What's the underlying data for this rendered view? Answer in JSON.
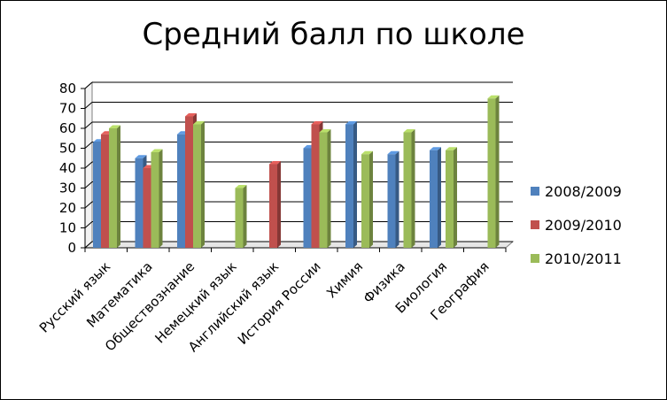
{
  "chart_data": {
    "type": "bar",
    "title": "Средний балл по школе",
    "xlabel": "",
    "ylabel": "",
    "ylim": [
      0,
      80
    ],
    "yticks": [
      0,
      10,
      20,
      30,
      40,
      50,
      60,
      70,
      80
    ],
    "grid": true,
    "legend_position": "right",
    "categories": [
      "Русский язык",
      "Математика",
      "Обществознание",
      "Немецкий язык",
      "Английский язык",
      "История России",
      "Химия",
      "Физика",
      "Биология",
      "География"
    ],
    "series": [
      {
        "name": "2008/2009",
        "color": "#4F81BD",
        "values": [
          53,
          45,
          57,
          null,
          null,
          50,
          62,
          47,
          49,
          null
        ]
      },
      {
        "name": "2009/2010",
        "color": "#C0504D",
        "values": [
          57,
          40,
          66,
          null,
          42,
          62,
          null,
          null,
          null,
          null
        ]
      },
      {
        "name": "2010/2011",
        "color": "#9BBB59",
        "values": [
          60,
          48,
          62,
          30,
          null,
          58,
          47,
          58,
          49,
          75
        ]
      }
    ]
  }
}
